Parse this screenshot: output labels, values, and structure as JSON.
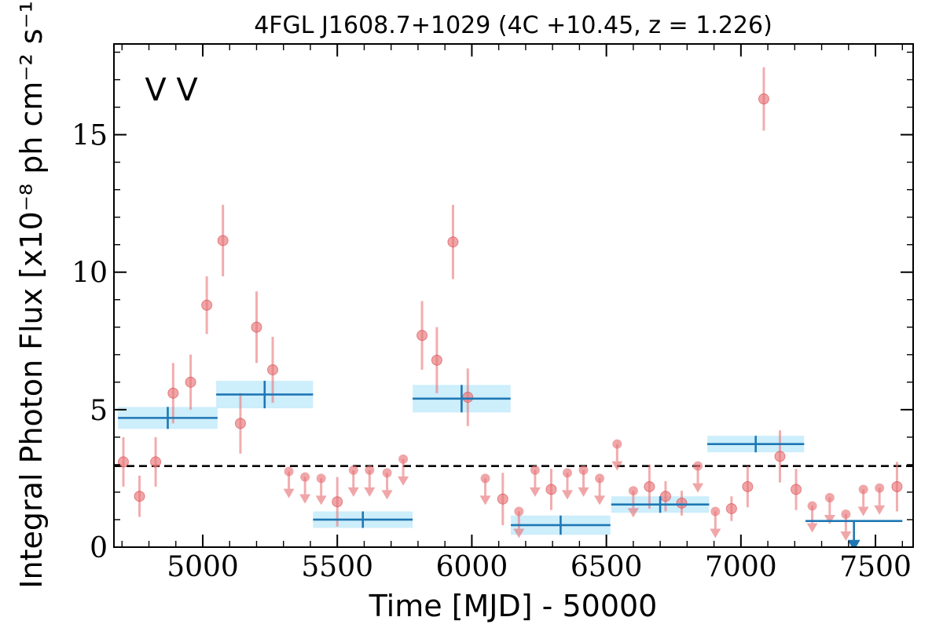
{
  "chart_data": {
    "type": "scatter",
    "title": "4FGL J1608.7+1029 (4C +10.45, z = 1.226)",
    "xlabel": "Time [MJD] - 50000",
    "ylabel": "Integral Photon Flux [x10⁻⁸ ph cm⁻² s⁻¹]",
    "xlim": [
      4670,
      7640
    ],
    "ylim": [
      0,
      18.3
    ],
    "xticks": [
      5000,
      5500,
      6000,
      6500,
      7000,
      7500
    ],
    "xtick_labels": [
      "5000",
      "5500",
      "6000",
      "6500",
      "7000",
      "7500"
    ],
    "yticks": [
      0,
      5,
      10,
      15
    ],
    "ytick_labels": [
      "0",
      "5",
      "10",
      "15"
    ],
    "grid": false,
    "reference_line": {
      "y": 2.95,
      "style": "dashed",
      "color": "#000000"
    },
    "legend": {
      "position": "top-left",
      "entries": [
        {
          "label": "V",
          "color": "#1f77b4"
        },
        {
          "label": "V",
          "color": "#d62728"
        }
      ]
    },
    "series": [
      {
        "color": "#e8767a",
        "detections": [
          {
            "x": 4705,
            "y": 3.1,
            "err": 0.9
          },
          {
            "x": 4765,
            "y": 1.85,
            "err": 0.75
          },
          {
            "x": 4825,
            "y": 3.1,
            "err": 0.9
          },
          {
            "x": 4890,
            "y": 5.6,
            "err": 1.1
          },
          {
            "x": 4955,
            "y": 6.0,
            "err": 1.0
          },
          {
            "x": 5015,
            "y": 8.8,
            "err": 1.05
          },
          {
            "x": 5075,
            "y": 11.15,
            "err": 1.3
          },
          {
            "x": 5140,
            "y": 4.5,
            "err": 1.1
          },
          {
            "x": 5200,
            "y": 8.0,
            "err": 1.3
          },
          {
            "x": 5260,
            "y": 6.45,
            "err": 1.2
          },
          {
            "x": 5500,
            "y": 1.65,
            "err": 0.9
          },
          {
            "x": 5815,
            "y": 7.7,
            "err": 1.25
          },
          {
            "x": 5870,
            "y": 6.8,
            "err": 1.2
          },
          {
            "x": 5930,
            "y": 11.1,
            "err": 1.35
          },
          {
            "x": 5985,
            "y": 5.45,
            "err": 1.05
          },
          {
            "x": 6115,
            "y": 1.75,
            "err": 0.95
          },
          {
            "x": 6295,
            "y": 2.1,
            "err": 0.75
          },
          {
            "x": 6660,
            "y": 2.2,
            "err": 0.8
          },
          {
            "x": 6720,
            "y": 1.85,
            "err": 0.55
          },
          {
            "x": 6780,
            "y": 1.6,
            "err": 0.45
          },
          {
            "x": 6965,
            "y": 1.4,
            "err": 0.45
          },
          {
            "x": 7025,
            "y": 2.2,
            "err": 0.75
          },
          {
            "x": 7085,
            "y": 16.3,
            "err": 1.15
          },
          {
            "x": 7145,
            "y": 3.3,
            "err": 0.95
          },
          {
            "x": 7205,
            "y": 2.1,
            "err": 0.75
          },
          {
            "x": 7580,
            "y": 2.2,
            "err": 0.9
          }
        ],
        "upper_limits": [
          {
            "x": 5320,
            "y": 2.75
          },
          {
            "x": 5380,
            "y": 2.55
          },
          {
            "x": 5440,
            "y": 2.5
          },
          {
            "x": 5560,
            "y": 2.8
          },
          {
            "x": 5620,
            "y": 2.8
          },
          {
            "x": 5685,
            "y": 2.7
          },
          {
            "x": 5745,
            "y": 3.2
          },
          {
            "x": 6050,
            "y": 2.5
          },
          {
            "x": 6175,
            "y": 1.3
          },
          {
            "x": 6235,
            "y": 2.8
          },
          {
            "x": 6355,
            "y": 2.7
          },
          {
            "x": 6415,
            "y": 2.8
          },
          {
            "x": 6475,
            "y": 2.5
          },
          {
            "x": 6540,
            "y": 3.75
          },
          {
            "x": 6600,
            "y": 2.05
          },
          {
            "x": 6840,
            "y": 2.95
          },
          {
            "x": 6905,
            "y": 1.3
          },
          {
            "x": 7265,
            "y": 1.5
          },
          {
            "x": 7330,
            "y": 1.8
          },
          {
            "x": 7390,
            "y": 1.2
          },
          {
            "x": 7455,
            "y": 2.1
          },
          {
            "x": 7515,
            "y": 2.15
          }
        ]
      },
      {
        "color": "#1f77b4",
        "band_color": "#cdeefb",
        "bins": [
          {
            "x": 4870,
            "xerr": 185,
            "y": 4.7,
            "yerr": 0.4,
            "xmark": 4870
          },
          {
            "x": 5230,
            "xerr": 180,
            "y": 5.55,
            "yerr": 0.5,
            "xmark": 5230
          },
          {
            "x": 5595,
            "xerr": 185,
            "y": 1.0,
            "yerr": 0.3,
            "xmark": 5595
          },
          {
            "x": 5962,
            "xerr": 182,
            "y": 5.4,
            "yerr": 0.5,
            "xmark": 5962
          },
          {
            "x": 6330,
            "xerr": 185,
            "y": 0.8,
            "yerr": 0.35,
            "xmark": 6330
          },
          {
            "x": 6700,
            "xerr": 182,
            "y": 1.55,
            "yerr": 0.3,
            "xmark": 6700
          },
          {
            "x": 7055,
            "xerr": 180,
            "y": 3.75,
            "yerr": 0.3,
            "xmark": 7055
          }
        ],
        "upper_limits": [
          {
            "x": 7420,
            "xerr": 180,
            "y": 0.95
          }
        ]
      }
    ]
  }
}
